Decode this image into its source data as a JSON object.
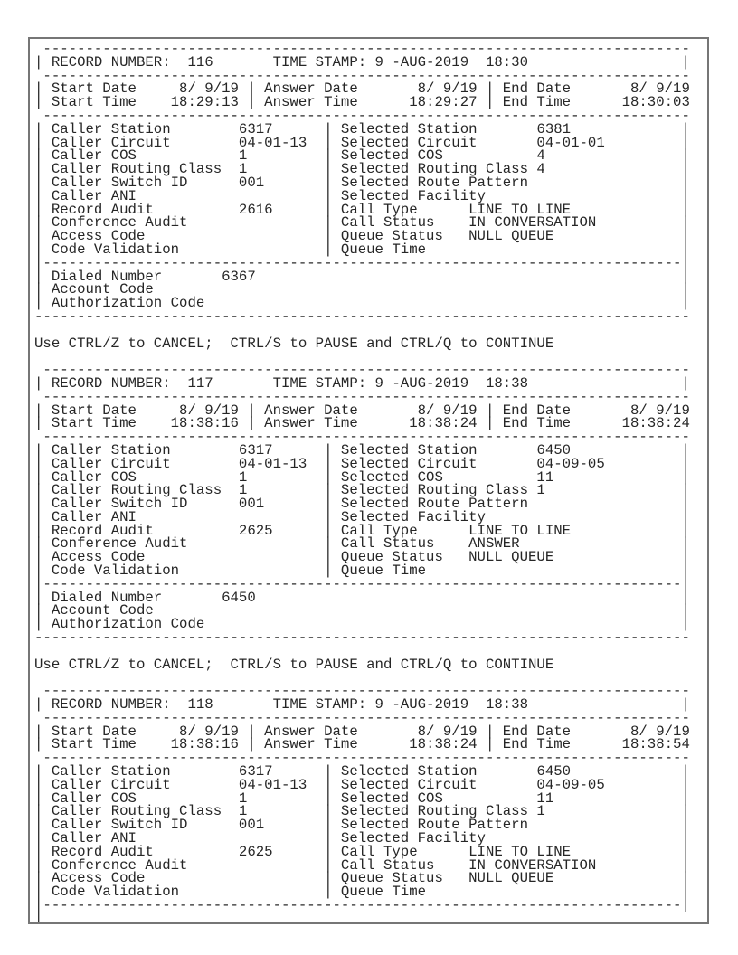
{
  "colors": {
    "frame_border": "#767676",
    "text": "#262626",
    "background": "#ffffff"
  },
  "prompt": "Use CTRL/Z to CANCEL;  CTRL/S to PAUSE and CTRL/Q to CONTINUE",
  "labels": {
    "record_number": "RECORD NUMBER:",
    "time_stamp": "TIME STAMP:",
    "start_date": "Start Date",
    "start_time": "Start Time",
    "answer_date": "Answer Date",
    "answer_time": "Answer Time",
    "end_date": "End Date",
    "end_time": "End Time",
    "caller_station": "Caller Station",
    "caller_circuit": "Caller Circuit",
    "caller_cos": "Caller COS",
    "caller_routing_class": "Caller Routing Class",
    "caller_switch_id": "Caller Switch ID",
    "caller_ani": "Caller ANI",
    "record_audit": "Record Audit",
    "conference_audit": "Conference Audit",
    "access_code": "Access Code",
    "code_validation": "Code Validation",
    "selected_station": "Selected Station",
    "selected_circuit": "Selected Circuit",
    "selected_cos": "Selected COS",
    "selected_routing_class": "Selected Routing Class",
    "selected_route_pattern": "Selected Route Pattern",
    "selected_facility": "Selected Facility",
    "call_type": "Call Type",
    "call_status": "Call Status",
    "queue_status": "Queue Status",
    "queue_time": "Queue Time",
    "dialed_number": "Dialed Number",
    "account_code": "Account Code",
    "authorization_code": "Authorization Code"
  },
  "records": [
    {
      "record_number": "116",
      "time_stamp": "9 -AUG-2019  18:30",
      "start_date": "8/ 9/19",
      "start_time": "18:29:13",
      "answer_date": "8/ 9/19",
      "answer_time": "18:29:27",
      "end_date": "8/ 9/19",
      "end_time": "18:30:03",
      "caller": {
        "station": "6317",
        "circuit": "04-01-13",
        "cos": "1",
        "routing_class": "1",
        "switch_id": "001",
        "ani": "",
        "record_audit": "2616",
        "conference_audit": "",
        "access_code": "",
        "code_validation": ""
      },
      "selected": {
        "station": "6381",
        "circuit": "04-01-01",
        "cos": "4",
        "routing_class": "4",
        "route_pattern": "",
        "facility": ""
      },
      "call": {
        "type": "LINE TO LINE",
        "status": "IN CONVERSATION",
        "queue_status": "NULL QUEUE",
        "queue_time": ""
      },
      "dialed_number": "6367",
      "account_code": "",
      "authorization_code": "",
      "truncated": false,
      "show_prompt": true
    },
    {
      "record_number": "117",
      "time_stamp": "9 -AUG-2019  18:38",
      "start_date": "8/ 9/19",
      "start_time": "18:38:16",
      "answer_date": "8/ 9/19",
      "answer_time": "18:38:24",
      "end_date": "8/ 9/19",
      "end_time": "18:38:24",
      "caller": {
        "station": "6317",
        "circuit": "04-01-13",
        "cos": "1",
        "routing_class": "1",
        "switch_id": "001",
        "ani": "",
        "record_audit": "2625",
        "conference_audit": "",
        "access_code": "",
        "code_validation": ""
      },
      "selected": {
        "station": "6450",
        "circuit": "04-09-05",
        "cos": "11",
        "routing_class": "1",
        "route_pattern": "",
        "facility": ""
      },
      "call": {
        "type": "LINE TO LINE",
        "status": "ANSWER",
        "queue_status": "NULL QUEUE",
        "queue_time": ""
      },
      "dialed_number": "6450",
      "account_code": "",
      "authorization_code": "",
      "truncated": false,
      "show_prompt": true
    },
    {
      "record_number": "118",
      "time_stamp": "9 -AUG-2019  18:38",
      "start_date": "8/ 9/19",
      "start_time": "18:38:16",
      "answer_date": "8/ 9/19",
      "answer_time": "18:38:24",
      "end_date": "8/ 9/19",
      "end_time": "18:38:54",
      "caller": {
        "station": "6317",
        "circuit": "04-01-13",
        "cos": "1",
        "routing_class": "1",
        "switch_id": "001",
        "ani": "",
        "record_audit": "2625",
        "conference_audit": "",
        "access_code": "",
        "code_validation": ""
      },
      "selected": {
        "station": "6450",
        "circuit": "04-09-05",
        "cos": "11",
        "routing_class": "1",
        "route_pattern": "",
        "facility": ""
      },
      "call": {
        "type": "LINE TO LINE",
        "status": "IN CONVERSATION",
        "queue_status": "NULL QUEUE",
        "queue_time": ""
      },
      "dialed_number": "",
      "account_code": "",
      "authorization_code": "",
      "truncated": true,
      "show_prompt": false
    }
  ]
}
